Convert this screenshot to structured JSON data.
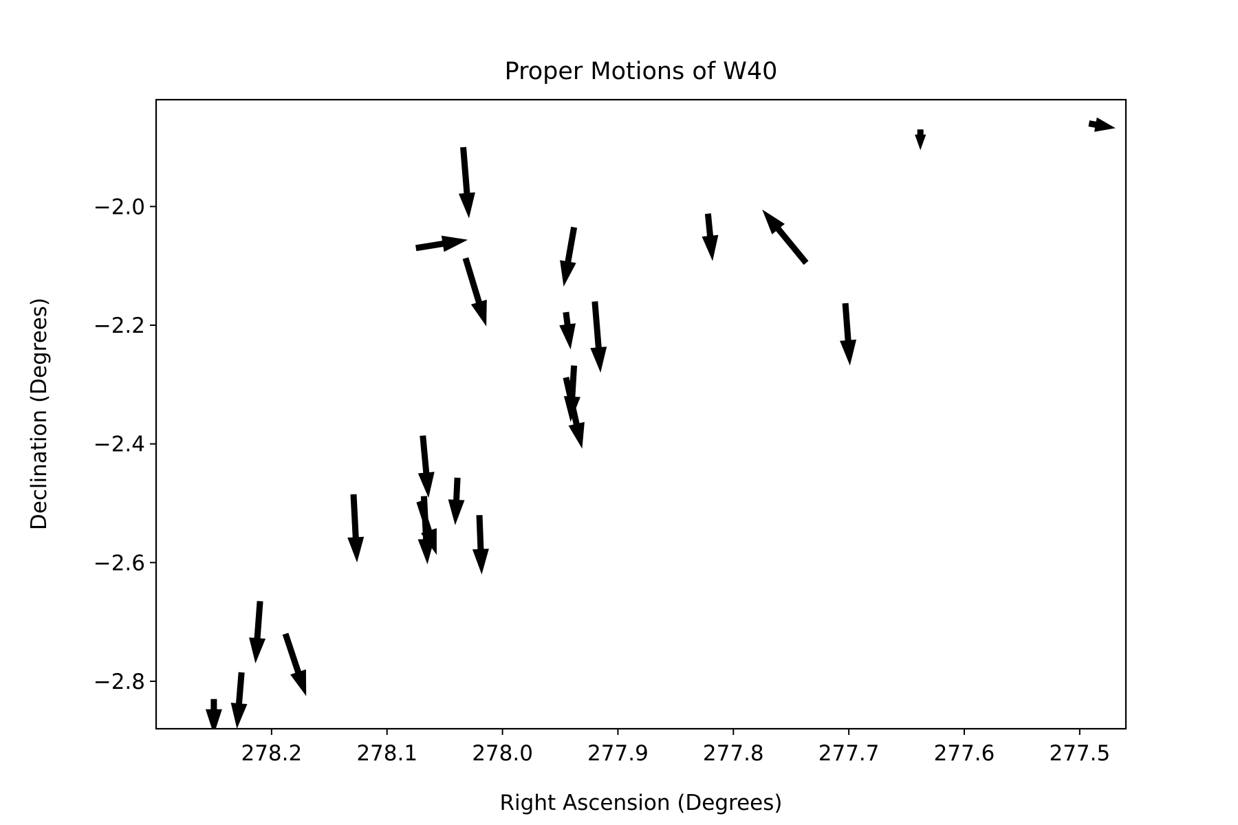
{
  "chart_data": {
    "type": "quiver",
    "title": "Proper Motions of W40",
    "xlabel": "Right Ascension (Degrees)",
    "ylabel": "Declination (Degrees)",
    "xlim": [
      278.3,
      277.46
    ],
    "ylim": [
      -2.88,
      -1.82
    ],
    "x_inverted": true,
    "grid": false,
    "xticks": [
      278.2,
      278.1,
      278.0,
      277.9,
      277.8,
      277.7,
      277.6,
      277.5
    ],
    "xtick_labels": [
      "278.2",
      "278.1",
      "278.0",
      "277.9",
      "277.8",
      "277.7",
      "277.6",
      "277.5"
    ],
    "yticks": [
      -2.0,
      -2.2,
      -2.4,
      -2.6,
      -2.8
    ],
    "ytick_labels": [
      "−2.0",
      "−2.2",
      "−2.4",
      "−2.6",
      "−2.8"
    ],
    "arrow_color": "#000000",
    "arrows": [
      {
        "ra": 278.034,
        "dec": -1.9,
        "d_ra": -0.005,
        "d_dec": -0.12
      },
      {
        "ra": 278.075,
        "dec": -2.07,
        "d_ra": -0.045,
        "d_dec": 0.014
      },
      {
        "ra": 278.032,
        "dec": -2.087,
        "d_ra": -0.018,
        "d_dec": -0.115
      },
      {
        "ra": 277.938,
        "dec": -2.035,
        "d_ra": 0.009,
        "d_dec": -0.1
      },
      {
        "ra": 277.945,
        "dec": -2.178,
        "d_ra": -0.004,
        "d_dec": -0.063
      },
      {
        "ra": 277.92,
        "dec": -2.16,
        "d_ra": -0.005,
        "d_dec": -0.12
      },
      {
        "ra": 277.945,
        "dec": -2.288,
        "d_ra": -0.014,
        "d_dec": -0.12
      },
      {
        "ra": 277.938,
        "dec": -2.268,
        "d_ra": 0.003,
        "d_dec": -0.095
      },
      {
        "ra": 277.822,
        "dec": -2.012,
        "d_ra": -0.004,
        "d_dec": -0.08
      },
      {
        "ra": 277.737,
        "dec": -2.095,
        "d_ra": 0.038,
        "d_dec": 0.09
      },
      {
        "ra": 277.703,
        "dec": -2.163,
        "d_ra": -0.004,
        "d_dec": -0.105
      },
      {
        "ra": 277.638,
        "dec": -1.87,
        "d_ra": 0.0,
        "d_dec": -0.035
      },
      {
        "ra": 277.492,
        "dec": -1.86,
        "d_ra": -0.023,
        "d_dec": -0.008
      },
      {
        "ra": 278.068,
        "dec": -2.488,
        "d_ra": -0.003,
        "d_dec": -0.115
      },
      {
        "ra": 278.069,
        "dec": -2.386,
        "d_ra": -0.005,
        "d_dec": -0.105
      },
      {
        "ra": 278.072,
        "dec": -2.497,
        "d_ra": -0.015,
        "d_dec": -0.09
      },
      {
        "ra": 278.039,
        "dec": -2.457,
        "d_ra": 0.002,
        "d_dec": -0.08
      },
      {
        "ra": 278.02,
        "dec": -2.52,
        "d_ra": -0.002,
        "d_dec": -0.1
      },
      {
        "ra": 278.129,
        "dec": -2.485,
        "d_ra": -0.003,
        "d_dec": -0.115
      },
      {
        "ra": 278.21,
        "dec": -2.665,
        "d_ra": 0.004,
        "d_dec": -0.105
      },
      {
        "ra": 278.188,
        "dec": -2.72,
        "d_ra": -0.018,
        "d_dec": -0.105
      },
      {
        "ra": 278.226,
        "dec": -2.785,
        "d_ra": 0.004,
        "d_dec": -0.095
      },
      {
        "ra": 278.25,
        "dec": -2.83,
        "d_ra": 0.0,
        "d_dec": -0.06
      }
    ]
  }
}
